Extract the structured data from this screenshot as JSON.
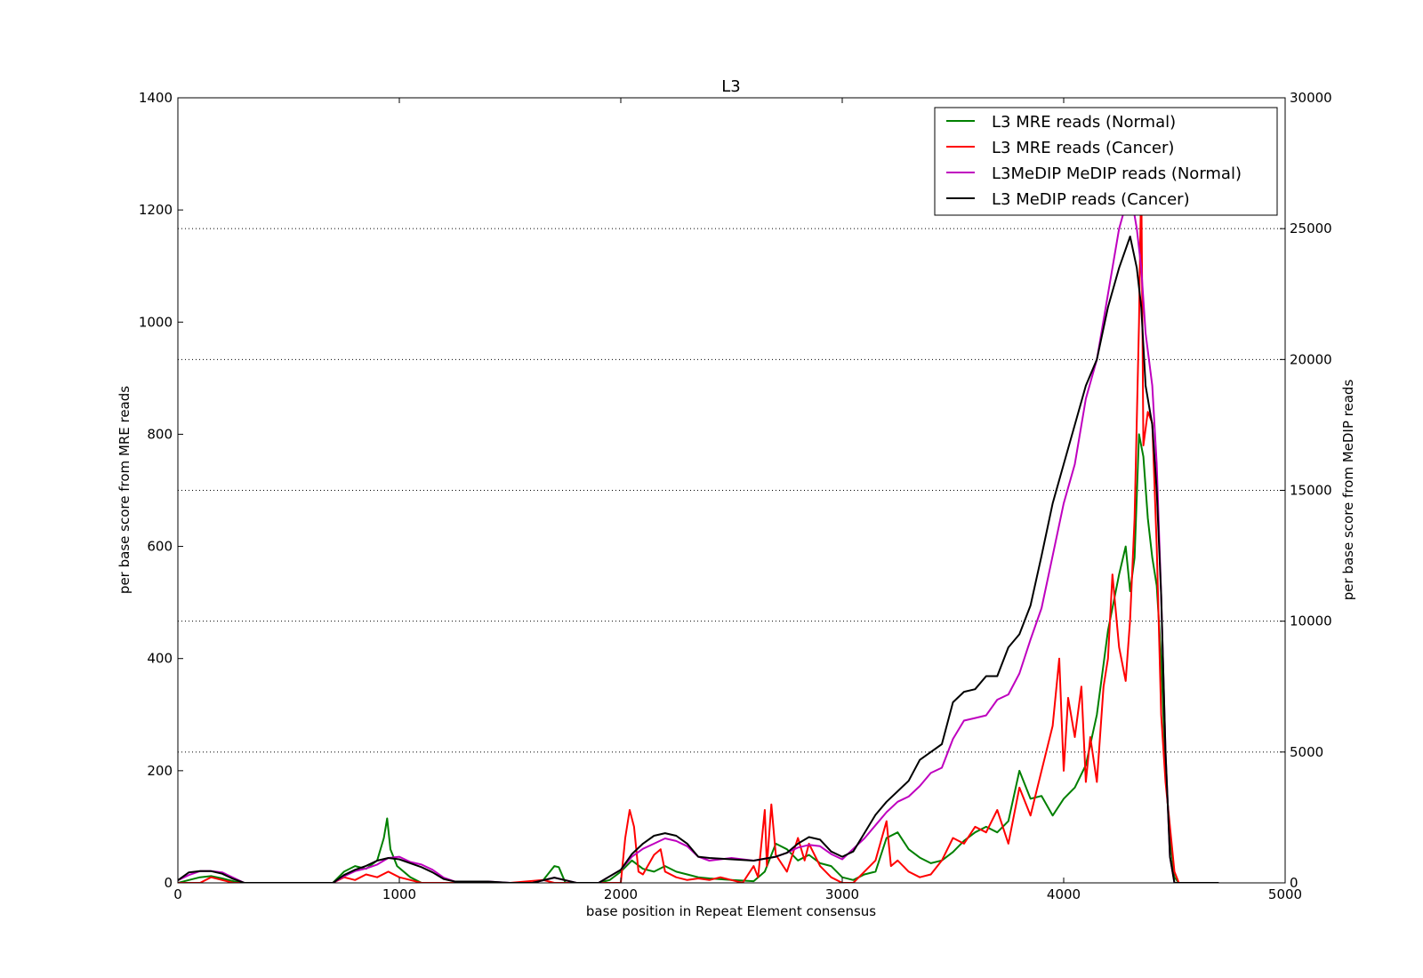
{
  "chart_data": {
    "type": "line",
    "title": "L3",
    "xlabel": "base position in Repeat Element consensus",
    "ylabel_left": "per base score from MRE reads",
    "ylabel_right": "per base score from MeDIP reads",
    "xlim": [
      0,
      5000
    ],
    "ylim_left": [
      0,
      1400
    ],
    "ylim_right": [
      0,
      30000
    ],
    "x_ticks": [
      "0",
      "1000",
      "2000",
      "3000",
      "4000",
      "5000"
    ],
    "y_left_ticks": [
      "0",
      "200",
      "400",
      "600",
      "800",
      "1000",
      "1200",
      "1400"
    ],
    "y_right_ticks": [
      "0",
      "5000",
      "10000",
      "15000",
      "20000",
      "25000",
      "30000"
    ],
    "grid": "horizontal dotted at right-axis ticks",
    "legend_position": "top-right",
    "series": [
      {
        "name": "L3 MRE reads (Normal)",
        "axis": "left",
        "color": "#008000",
        "x": [
          0,
          50,
          100,
          150,
          200,
          260,
          300,
          700,
          750,
          800,
          850,
          900,
          930,
          945,
          960,
          990,
          1050,
          1100,
          1150,
          1200,
          1600,
          1650,
          1700,
          1720,
          1750,
          1850,
          1900,
          1950,
          2000,
          2050,
          2100,
          2150,
          2200,
          2250,
          2300,
          2350,
          2400,
          2500,
          2600,
          2650,
          2700,
          2750,
          2800,
          2850,
          2900,
          2950,
          3000,
          3050,
          3100,
          3150,
          3200,
          3250,
          3300,
          3350,
          3400,
          3450,
          3500,
          3550,
          3600,
          3650,
          3700,
          3750,
          3800,
          3850,
          3900,
          3950,
          4000,
          4050,
          4100,
          4150,
          4200,
          4250,
          4280,
          4300,
          4320,
          4340,
          4360,
          4380,
          4400,
          4420,
          4440,
          4460,
          4480,
          4500,
          4520,
          4600
        ],
        "values": [
          0,
          5,
          10,
          12,
          8,
          2,
          0,
          0,
          20,
          30,
          25,
          40,
          80,
          115,
          60,
          30,
          10,
          0,
          0,
          0,
          0,
          5,
          30,
          28,
          0,
          0,
          0,
          5,
          20,
          40,
          25,
          20,
          30,
          20,
          15,
          10,
          8,
          5,
          3,
          20,
          70,
          60,
          40,
          50,
          35,
          30,
          10,
          5,
          15,
          20,
          80,
          90,
          60,
          45,
          35,
          40,
          55,
          75,
          90,
          100,
          90,
          110,
          200,
          150,
          155,
          120,
          150,
          170,
          210,
          300,
          450,
          550,
          600,
          520,
          580,
          800,
          760,
          650,
          580,
          530,
          400,
          200,
          80,
          10,
          0,
          0
        ]
      },
      {
        "name": "L3 MRE reads (Cancer)",
        "axis": "left",
        "color": "#ff0000",
        "x": [
          0,
          100,
          150,
          200,
          250,
          300,
          700,
          750,
          800,
          850,
          900,
          950,
          1000,
          1050,
          1100,
          1500,
          1650,
          1700,
          1750,
          2000,
          2020,
          2040,
          2060,
          2080,
          2100,
          2150,
          2180,
          2200,
          2250,
          2300,
          2350,
          2400,
          2450,
          2500,
          2550,
          2600,
          2620,
          2650,
          2660,
          2680,
          2700,
          2750,
          2800,
          2830,
          2850,
          2900,
          2950,
          3000,
          3050,
          3100,
          3150,
          3200,
          3220,
          3250,
          3300,
          3350,
          3400,
          3450,
          3500,
          3550,
          3600,
          3650,
          3700,
          3750,
          3800,
          3850,
          3900,
          3950,
          3980,
          4000,
          4020,
          4050,
          4080,
          4100,
          4120,
          4150,
          4180,
          4200,
          4220,
          4250,
          4280,
          4300,
          4320,
          4340,
          4350,
          4360,
          4380,
          4400,
          4420,
          4440,
          4460,
          4480,
          4500,
          4520,
          4600
        ],
        "values": [
          0,
          0,
          10,
          5,
          0,
          0,
          0,
          10,
          5,
          15,
          10,
          20,
          10,
          5,
          0,
          0,
          5,
          0,
          0,
          0,
          80,
          130,
          100,
          20,
          15,
          50,
          60,
          20,
          10,
          5,
          8,
          5,
          10,
          5,
          0,
          30,
          10,
          130,
          30,
          140,
          50,
          20,
          80,
          40,
          70,
          30,
          10,
          0,
          0,
          20,
          40,
          110,
          30,
          40,
          20,
          10,
          15,
          40,
          80,
          70,
          100,
          90,
          130,
          70,
          170,
          120,
          200,
          280,
          400,
          200,
          330,
          260,
          350,
          180,
          260,
          180,
          350,
          400,
          550,
          420,
          360,
          470,
          650,
          1000,
          1260,
          780,
          840,
          820,
          600,
          300,
          180,
          100,
          20,
          0,
          0
        ]
      },
      {
        "name": "L3MeDIP MeDIP reads (Normal)",
        "axis": "right",
        "color": "#bf00bf",
        "x": [
          0,
          50,
          100,
          150,
          200,
          250,
          300,
          700,
          750,
          800,
          850,
          900,
          950,
          1000,
          1050,
          1100,
          1150,
          1200,
          1250,
          1400,
          1500,
          1600,
          1700,
          1800,
          1900,
          2000,
          2050,
          2100,
          2150,
          2200,
          2250,
          2300,
          2350,
          2400,
          2500,
          2600,
          2700,
          2750,
          2800,
          2850,
          2900,
          2950,
          3000,
          3050,
          3100,
          3150,
          3200,
          3250,
          3300,
          3350,
          3400,
          3450,
          3500,
          3550,
          3600,
          3650,
          3700,
          3750,
          3800,
          3850,
          3900,
          3950,
          4000,
          4050,
          4100,
          4150,
          4200,
          4250,
          4300,
          4330,
          4350,
          4370,
          4400,
          4420,
          4440,
          4460,
          4480,
          4500,
          4520,
          4600,
          4700
        ],
        "values": [
          100,
          300,
          450,
          450,
          400,
          200,
          0,
          0,
          250,
          450,
          550,
          700,
          950,
          1000,
          800,
          700,
          500,
          200,
          50,
          50,
          0,
          0,
          200,
          0,
          0,
          500,
          1000,
          1300,
          1500,
          1700,
          1600,
          1400,
          1000,
          850,
          950,
          850,
          1000,
          1150,
          1350,
          1450,
          1400,
          1100,
          900,
          1300,
          1700,
          2200,
          2700,
          3100,
          3300,
          3700,
          4200,
          4400,
          5500,
          6200,
          6300,
          6400,
          7000,
          7200,
          8000,
          9300,
          10500,
          12500,
          14500,
          16000,
          18500,
          20000,
          22500,
          25000,
          26500,
          25000,
          23500,
          21000,
          19000,
          16000,
          11000,
          5000,
          1000,
          0,
          0,
          0,
          0
        ]
      },
      {
        "name": "L3 MeDIP reads (Cancer)",
        "axis": "right",
        "color": "#000000",
        "x": [
          0,
          50,
          100,
          150,
          200,
          250,
          300,
          700,
          750,
          800,
          850,
          900,
          950,
          1000,
          1050,
          1100,
          1150,
          1200,
          1250,
          1400,
          1500,
          1600,
          1700,
          1800,
          1900,
          2000,
          2050,
          2100,
          2150,
          2200,
          2250,
          2300,
          2350,
          2400,
          2500,
          2600,
          2700,
          2750,
          2800,
          2850,
          2900,
          2950,
          3000,
          3050,
          3100,
          3150,
          3200,
          3250,
          3300,
          3350,
          3400,
          3450,
          3500,
          3550,
          3600,
          3650,
          3700,
          3750,
          3800,
          3850,
          3900,
          3950,
          4000,
          4050,
          4100,
          4150,
          4200,
          4250,
          4300,
          4330,
          4350,
          4370,
          4400,
          4420,
          4440,
          4460,
          4480,
          4500,
          4520,
          4600,
          4700
        ],
        "values": [
          100,
          400,
          450,
          450,
          350,
          150,
          0,
          0,
          300,
          500,
          650,
          850,
          950,
          900,
          750,
          600,
          400,
          150,
          50,
          50,
          0,
          0,
          200,
          0,
          0,
          500,
          1100,
          1500,
          1800,
          1900,
          1800,
          1500,
          1000,
          950,
          900,
          850,
          1000,
          1150,
          1500,
          1750,
          1650,
          1200,
          1000,
          1200,
          1900,
          2600,
          3100,
          3500,
          3900,
          4700,
          5000,
          5300,
          6900,
          7300,
          7400,
          7900,
          7900,
          9000,
          9500,
          10600,
          12500,
          14500,
          16000,
          17500,
          19000,
          20000,
          22000,
          23500,
          24700,
          23500,
          22000,
          19000,
          17500,
          15000,
          11000,
          5000,
          1000,
          0,
          0,
          0,
          0
        ]
      }
    ]
  }
}
